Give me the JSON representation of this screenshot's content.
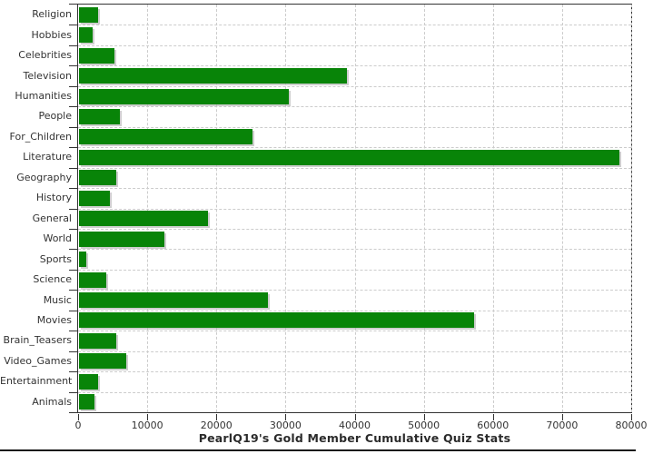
{
  "chart_data": {
    "type": "bar",
    "orientation": "horizontal",
    "title": "PearlQ19's Gold Member Cumulative Quiz Stats",
    "categories": [
      "Religion",
      "Hobbies",
      "Celebrities",
      "Television",
      "Humanities",
      "People",
      "For_Children",
      "Literature",
      "Geography",
      "History",
      "General",
      "World",
      "Sports",
      "Science",
      "Music",
      "Movies",
      "Brain_Teasers",
      "Video_Games",
      "Entertainment",
      "Animals"
    ],
    "values": [
      2700,
      2000,
      5100,
      38750,
      30350,
      5900,
      25100,
      78150,
      5370,
      4450,
      18700,
      12300,
      1050,
      3900,
      27270,
      57200,
      5370,
      6770,
      2750,
      2260
    ],
    "xlabel": "",
    "ylabel": "",
    "xlim": [
      0,
      80000
    ],
    "x_ticks": [
      0,
      10000,
      20000,
      30000,
      40000,
      50000,
      60000,
      70000,
      80000
    ],
    "grid": "dashed-both-axes",
    "legend": "none"
  },
  "colors": {
    "bar": "#088408",
    "grid": "#cccccc",
    "axis": "#333333",
    "label": "#333333",
    "title": "#2b2b2b"
  }
}
